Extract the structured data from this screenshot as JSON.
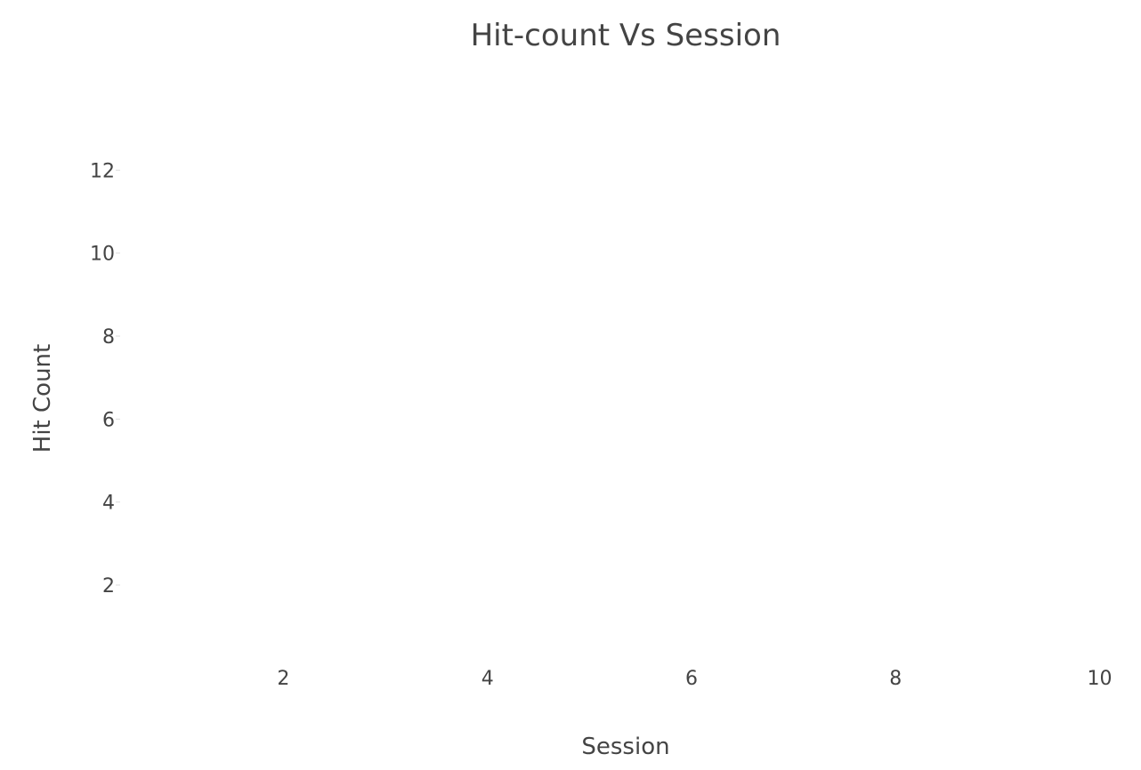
{
  "chart_data": {
    "type": "scatter",
    "title": "Hit-count Vs Session",
    "xlabel": "Session",
    "ylabel": "Hit Count",
    "xlim": [
      0.4,
      10.1
    ],
    "ylim": [
      0.35,
      13.1
    ],
    "xticks": [
      2,
      4,
      6,
      8,
      10
    ],
    "yticks": [
      2,
      4,
      6,
      8,
      10,
      12
    ],
    "grid": false,
    "series": []
  },
  "colors": {
    "text": "#444444",
    "background": "#ffffff",
    "tick_mark": "#dddddd"
  }
}
